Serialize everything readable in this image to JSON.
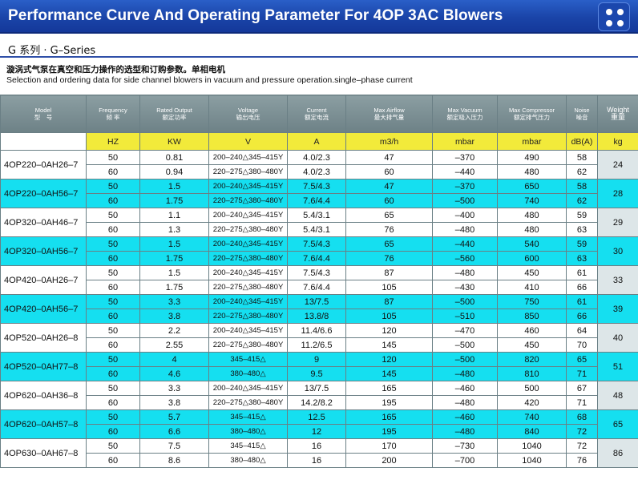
{
  "header": {
    "title": "Performance Curve And Operating Parameter For 4OP 3AC Blowers",
    "menu_icon": "four-dots-icon"
  },
  "series": "G 系列 · G–Series",
  "description": {
    "cn": "漩涡式气泵在真空和压力操作的选型和订购参数。单相电机",
    "en": "Selection and ordering data for side channel blowers in vacuum and pressure operation.single–phase current"
  },
  "table": {
    "columns": [
      {
        "en": "Model",
        "cn": "型　号"
      },
      {
        "en": "Frequency",
        "cn": "频 率"
      },
      {
        "en": "Rated Output",
        "cn": "额定功率"
      },
      {
        "en": "Voltage",
        "cn": "输出电压"
      },
      {
        "en": "Current",
        "cn": "额定电流"
      },
      {
        "en": "Max Airflow",
        "cn": "最大排气量"
      },
      {
        "en": "Max Vacuum",
        "cn": "额定吸入压力"
      },
      {
        "en": "Max Compressor",
        "cn": "额定排气压力"
      },
      {
        "en": "Noise",
        "cn": "噪音"
      },
      {
        "en": "Weight",
        "cn": "重量"
      }
    ],
    "units": [
      "",
      "HZ",
      "KW",
      "V",
      "A",
      "m3/h",
      "mbar",
      "mbar",
      "dB(A)",
      "kg"
    ],
    "groups": [
      {
        "model": "4OP220–0AH26–7",
        "weight": "24",
        "rows": [
          {
            "freq": "50",
            "kw": "0.81",
            "v": "200–240△345–415Y",
            "a": "4.0/2.3",
            "flow": "47",
            "vac": "–370",
            "comp": "490",
            "noise": "58"
          },
          {
            "freq": "60",
            "kw": "0.94",
            "v": "220–275△380–480Y",
            "a": "4.0/2.3",
            "flow": "60",
            "vac": "–440",
            "comp": "480",
            "noise": "62"
          }
        ]
      },
      {
        "model": "4OP220–0AH56–7",
        "weight": "28",
        "rows": [
          {
            "freq": "50",
            "kw": "1.5",
            "v": "200–240△345–415Y",
            "a": "7.5/4.3",
            "flow": "47",
            "vac": "–370",
            "comp": "650",
            "noise": "58"
          },
          {
            "freq": "60",
            "kw": "1.75",
            "v": "220–275△380–480Y",
            "a": "7.6/4.4",
            "flow": "60",
            "vac": "–500",
            "comp": "740",
            "noise": "62"
          }
        ]
      },
      {
        "model": "4OP320–0AH46–7",
        "weight": "29",
        "rows": [
          {
            "freq": "50",
            "kw": "1.1",
            "v": "200–240△345–415Y",
            "a": "5.4/3.1",
            "flow": "65",
            "vac": "–400",
            "comp": "480",
            "noise": "59"
          },
          {
            "freq": "60",
            "kw": "1.3",
            "v": "220–275△380–480Y",
            "a": "5.4/3.1",
            "flow": "76",
            "vac": "–480",
            "comp": "480",
            "noise": "63"
          }
        ]
      },
      {
        "model": "4OP320–0AH56–7",
        "weight": "30",
        "rows": [
          {
            "freq": "50",
            "kw": "1.5",
            "v": "200–240△345–415Y",
            "a": "7.5/4.3",
            "flow": "65",
            "vac": "–440",
            "comp": "540",
            "noise": "59"
          },
          {
            "freq": "60",
            "kw": "1.75",
            "v": "220–275△380–480Y",
            "a": "7.6/4.4",
            "flow": "76",
            "vac": "–560",
            "comp": "600",
            "noise": "63"
          }
        ]
      },
      {
        "model": "4OP420–0AH26–7",
        "weight": "33",
        "rows": [
          {
            "freq": "50",
            "kw": "1.5",
            "v": "200–240△345–415Y",
            "a": "7.5/4.3",
            "flow": "87",
            "vac": "–480",
            "comp": "450",
            "noise": "61"
          },
          {
            "freq": "60",
            "kw": "1.75",
            "v": "220–275△380–480Y",
            "a": "7.6/4.4",
            "flow": "105",
            "vac": "–430",
            "comp": "410",
            "noise": "66"
          }
        ]
      },
      {
        "model": "4OP420–0AH56–7",
        "weight": "39",
        "rows": [
          {
            "freq": "50",
            "kw": "3.3",
            "v": "200–240△345–415Y",
            "a": "13/7.5",
            "flow": "87",
            "vac": "–500",
            "comp": "750",
            "noise": "61"
          },
          {
            "freq": "60",
            "kw": "3.8",
            "v": "220–275△380–480Y",
            "a": "13.8/8",
            "flow": "105",
            "vac": "–510",
            "comp": "850",
            "noise": "66"
          }
        ]
      },
      {
        "model": "4OP520–0AH26–8",
        "weight": "40",
        "rows": [
          {
            "freq": "50",
            "kw": "2.2",
            "v": "200–240△345–415Y",
            "a": "11.4/6.6",
            "flow": "120",
            "vac": "–470",
            "comp": "460",
            "noise": "64"
          },
          {
            "freq": "60",
            "kw": "2.55",
            "v": "220–275△380–480Y",
            "a": "11.2/6.5",
            "flow": "145",
            "vac": "–500",
            "comp": "450",
            "noise": "70"
          }
        ]
      },
      {
        "model": "4OP520–0AH77–8",
        "weight": "51",
        "rows": [
          {
            "freq": "50",
            "kw": "4",
            "v": "345–415△",
            "a": "9",
            "flow": "120",
            "vac": "–500",
            "comp": "820",
            "noise": "65"
          },
          {
            "freq": "60",
            "kw": "4.6",
            "v": "380–480△",
            "a": "9.5",
            "flow": "145",
            "vac": "–480",
            "comp": "810",
            "noise": "71"
          }
        ]
      },
      {
        "model": "4OP620–0AH36–8",
        "weight": "48",
        "rows": [
          {
            "freq": "50",
            "kw": "3.3",
            "v": "200–240△345–415Y",
            "a": "13/7.5",
            "flow": "165",
            "vac": "–460",
            "comp": "500",
            "noise": "67"
          },
          {
            "freq": "60",
            "kw": "3.8",
            "v": "220–275△380–480Y",
            "a": "14.2/8.2",
            "flow": "195",
            "vac": "–480",
            "comp": "420",
            "noise": "71"
          }
        ]
      },
      {
        "model": "4OP620–0AH57–8",
        "weight": "65",
        "rows": [
          {
            "freq": "50",
            "kw": "5.7",
            "v": "345–415△",
            "a": "12.5",
            "flow": "165",
            "vac": "–460",
            "comp": "740",
            "noise": "68"
          },
          {
            "freq": "60",
            "kw": "6.6",
            "v": "380–480△",
            "a": "12",
            "flow": "195",
            "vac": "–480",
            "comp": "840",
            "noise": "72"
          }
        ]
      },
      {
        "model": "4OP630–0AH67–8",
        "weight": "86",
        "rows": [
          {
            "freq": "50",
            "kw": "7.5",
            "v": "345–415△",
            "a": "16",
            "flow": "170",
            "vac": "–730",
            "comp": "1040",
            "noise": "72"
          },
          {
            "freq": "60",
            "kw": "8.6",
            "v": "380–480△",
            "a": "16",
            "flow": "200",
            "vac": "–700",
            "comp": "1040",
            "noise": "76"
          }
        ]
      }
    ]
  }
}
